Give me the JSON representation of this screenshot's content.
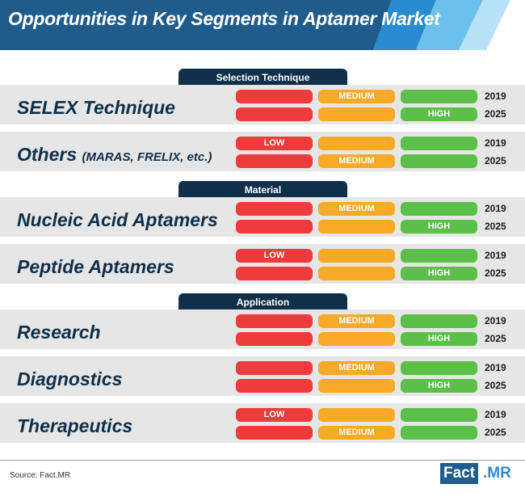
{
  "title": "Opportunities in Key Segments in Aptamer Market",
  "source": "Source: Fact.MR",
  "logo": {
    "part1": "Fact",
    "part2": ".MR"
  },
  "colors": {
    "navy": "#0f2f4a",
    "low": "#ee3b3b",
    "medium": "#f7a928",
    "high": "#5bbf4a",
    "row_bg": "#e6e6e6"
  },
  "chart_data": {
    "type": "table",
    "levels": [
      "LOW",
      "MEDIUM",
      "HIGH"
    ],
    "years": [
      "2019",
      "2025"
    ],
    "sections": [
      {
        "name": "Selection Technique",
        "segments": [
          {
            "label": "SELEX Technique",
            "sub": "",
            "ratings": [
              {
                "year": "2019",
                "level": "MEDIUM"
              },
              {
                "year": "2025",
                "level": "HIGH"
              }
            ]
          },
          {
            "label": "Others",
            "sub": "(MARAS, FRELIX, etc.)",
            "ratings": [
              {
                "year": "2019",
                "level": "LOW"
              },
              {
                "year": "2025",
                "level": "MEDIUM"
              }
            ]
          }
        ]
      },
      {
        "name": "Material",
        "segments": [
          {
            "label": "Nucleic Acid Aptamers",
            "sub": "",
            "ratings": [
              {
                "year": "2019",
                "level": "MEDIUM"
              },
              {
                "year": "2025",
                "level": "HIGH"
              }
            ]
          },
          {
            "label": "Peptide Aptamers",
            "sub": "",
            "ratings": [
              {
                "year": "2019",
                "level": "LOW"
              },
              {
                "year": "2025",
                "level": "HIGH"
              }
            ]
          }
        ]
      },
      {
        "name": "Application",
        "segments": [
          {
            "label": "Research",
            "sub": "",
            "ratings": [
              {
                "year": "2019",
                "level": "MEDIUM"
              },
              {
                "year": "2025",
                "level": "HIGH"
              }
            ]
          },
          {
            "label": "Diagnostics",
            "sub": "",
            "ratings": [
              {
                "year": "2019",
                "level": "MEDIUM"
              },
              {
                "year": "2025",
                "level": "HIGH"
              }
            ]
          },
          {
            "label": "Therapeutics",
            "sub": "",
            "ratings": [
              {
                "year": "2019",
                "level": "LOW"
              },
              {
                "year": "2025",
                "level": "MEDIUM"
              }
            ]
          }
        ]
      }
    ]
  }
}
